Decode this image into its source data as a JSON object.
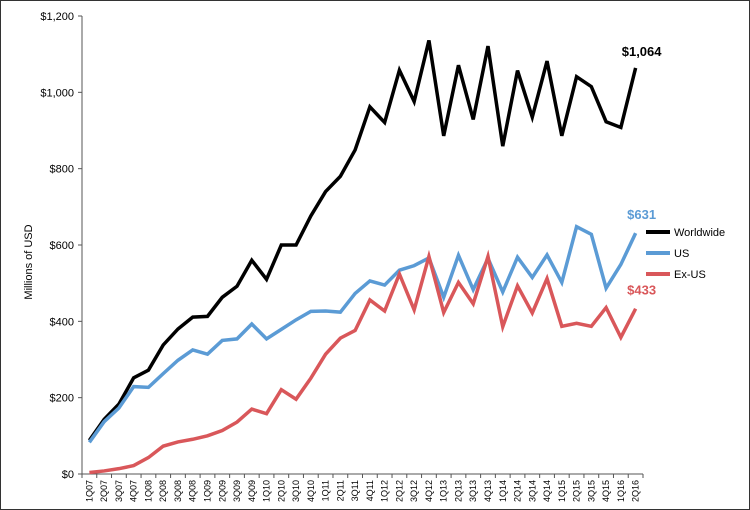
{
  "chart_data": {
    "type": "line",
    "title": "",
    "xlabel": "",
    "ylabel": "Millions of USD",
    "ylim": [
      0,
      1200
    ],
    "yticks": [
      0,
      200,
      400,
      600,
      800,
      1000,
      1200
    ],
    "ytick_labels": [
      "$0",
      "$200",
      "$400",
      "$600",
      "$800",
      "$1,000",
      "$1,200"
    ],
    "grid": false,
    "legend_position": "right",
    "categories": [
      "1Q07",
      "2Q07",
      "3Q07",
      "4Q07",
      "1Q08",
      "2Q08",
      "3Q08",
      "4Q08",
      "1Q09",
      "2Q09",
      "3Q09",
      "4Q09",
      "1Q10",
      "2Q10",
      "3Q10",
      "4Q10",
      "1Q11",
      "2Q11",
      "3Q11",
      "4Q11",
      "1Q12",
      "2Q12",
      "3Q12",
      "4Q12",
      "1Q13",
      "2Q13",
      "3Q13",
      "4Q13",
      "1Q14",
      "2Q14",
      "3Q14",
      "4Q14",
      "1Q15",
      "2Q15",
      "3Q15",
      "4Q15",
      "1Q16",
      "2Q16"
    ],
    "series": [
      {
        "name": "Worldwide",
        "color": "#000000",
        "values": [
          88,
          143,
          183,
          252,
          272,
          338,
          380,
          411,
          413,
          463,
          492,
          560,
          510,
          600,
          600,
          676,
          740,
          780,
          849,
          962,
          921,
          1058,
          976,
          1136,
          886,
          1071,
          929,
          1121,
          859,
          1057,
          935,
          1082,
          886,
          1041,
          1015,
          923,
          908,
          1064
        ],
        "end_label": "$1,064"
      },
      {
        "name": "US",
        "color": "#5b9bd5",
        "values": [
          83,
          137,
          173,
          229,
          227,
          263,
          298,
          325,
          314,
          350,
          354,
          393,
          354,
          379,
          404,
          426,
          427,
          424,
          473,
          506,
          495,
          534,
          546,
          566,
          463,
          573,
          483,
          565,
          477,
          568,
          515,
          574,
          502,
          648,
          628,
          487,
          549,
          631
        ],
        "end_label": "$631"
      },
      {
        "name": "Ex-US",
        "color": "#d9575a",
        "values": [
          4,
          8,
          14,
          22,
          43,
          73,
          84,
          91,
          100,
          114,
          136,
          170,
          158,
          221,
          196,
          251,
          314,
          356,
          376,
          456,
          427,
          524,
          430,
          570,
          423,
          502,
          446,
          570,
          386,
          493,
          422,
          512,
          387,
          395,
          387,
          436,
          358,
          433
        ],
        "end_label": "$433"
      }
    ]
  }
}
